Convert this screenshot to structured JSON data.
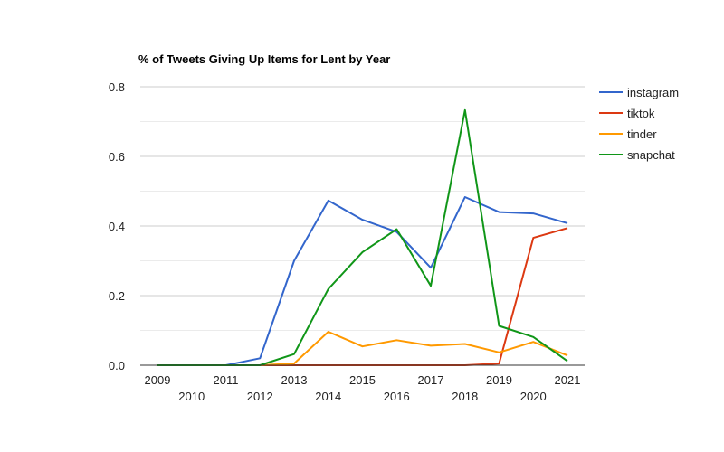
{
  "chart_data": {
    "type": "line",
    "title": "% of Tweets Giving Up Items for Lent by Year",
    "xlabel": "",
    "ylabel": "",
    "x": [
      "2009",
      "2010",
      "2011",
      "2012",
      "2013",
      "2014",
      "2015",
      "2016",
      "2017",
      "2018",
      "2019",
      "2020",
      "2021"
    ],
    "ylim": [
      0,
      0.8
    ],
    "yticks": [
      0.0,
      0.2,
      0.4,
      0.6,
      0.8
    ],
    "ytick_labels": [
      "0.0",
      "0.2",
      "0.4",
      "0.6",
      "0.8"
    ],
    "grid": true,
    "legend_position": "right",
    "series": [
      {
        "name": "instagram",
        "color": "#3366cc",
        "values": [
          0,
          0,
          0,
          0.02,
          0.3,
          0.473,
          0.418,
          0.383,
          0.28,
          0.483,
          0.44,
          0.436,
          0.408
        ]
      },
      {
        "name": "tiktok",
        "color": "#dc3912",
        "values": [
          0,
          0,
          0,
          0,
          0,
          0,
          0,
          0,
          0,
          0,
          0.005,
          0.366,
          0.394
        ]
      },
      {
        "name": "tinder",
        "color": "#ff9900",
        "values": [
          0,
          0,
          0,
          0,
          0.005,
          0.096,
          0.054,
          0.072,
          0.056,
          0.061,
          0.037,
          0.067,
          0.028
        ]
      },
      {
        "name": "snapchat",
        "color": "#109618",
        "values": [
          0,
          0,
          0,
          0,
          0.032,
          0.219,
          0.325,
          0.391,
          0.228,
          0.733,
          0.113,
          0.081,
          0.012
        ]
      }
    ]
  },
  "colors": {
    "gridline": "#cccccc",
    "gridline_minor": "#ebebeb",
    "baseline": "#333333"
  }
}
